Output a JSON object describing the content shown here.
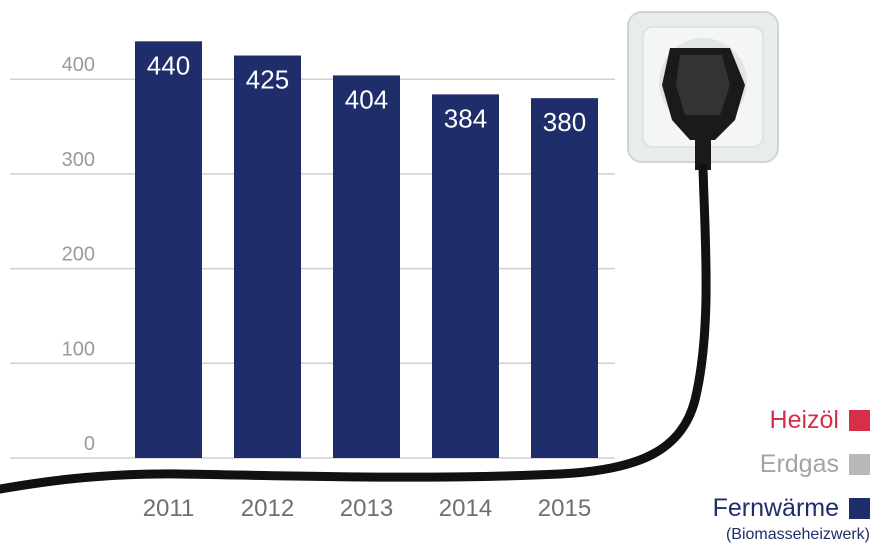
{
  "chart_data": {
    "type": "bar",
    "categories": [
      "2011",
      "2012",
      "2013",
      "2014",
      "2015"
    ],
    "values": [
      440,
      425,
      404,
      384,
      380
    ],
    "yticks": [
      0,
      100,
      200,
      300,
      400
    ],
    "ylim": [
      0,
      450
    ],
    "grid": true,
    "bar_color": "#1f2d6b",
    "legend_position": "bottom-right"
  },
  "legend": {
    "items": [
      {
        "label": "Heizöl",
        "color": "#d62f4a",
        "text_color": "#d62f4a"
      },
      {
        "label": "Erdgas",
        "color": "#b8b8b8",
        "text_color": "#a3a3a3"
      },
      {
        "label": "Fernwärme",
        "color": "#1f2d6b",
        "text_color": "#1f2d6b"
      }
    ],
    "subtitle": "(Biomasseheizwerk)"
  }
}
